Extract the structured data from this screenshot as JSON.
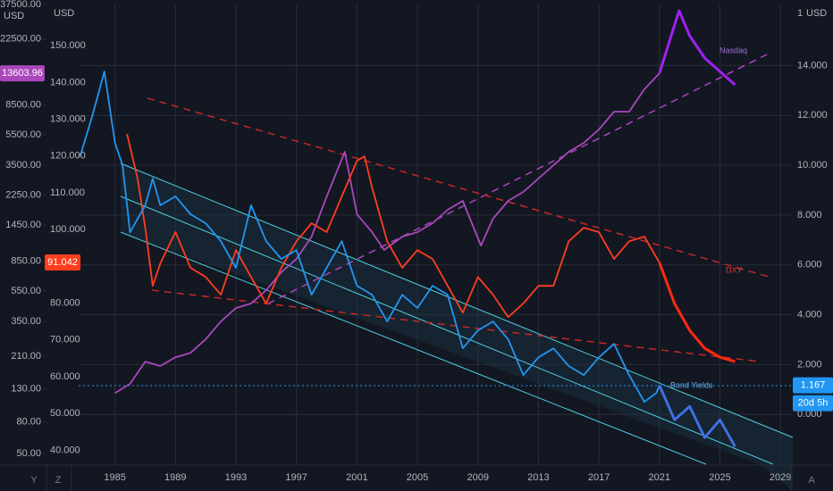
{
  "chart_data": {
    "type": "line",
    "x": null,
    "xlim": [
      1982.6,
      2029.7
    ],
    "xticks": [
      1985,
      1989,
      1993,
      1997,
      2001,
      2005,
      2009,
      2013,
      2017,
      2021,
      2025,
      2029
    ],
    "ylim": [
      36.2,
      161.2
    ],
    "yticks": [
      {
        "value": 150,
        "label": "150.000"
      },
      {
        "value": 140,
        "label": "140.000"
      },
      {
        "value": 130,
        "label": "130.000"
      },
      {
        "value": 120,
        "label": "120.000"
      },
      {
        "value": 110,
        "label": "110.000"
      },
      {
        "value": 100,
        "label": "100.000"
      },
      {
        "value": 80,
        "label": "80.000"
      },
      {
        "value": 70,
        "label": "70.000"
      },
      {
        "value": 60,
        "label": "60.000"
      },
      {
        "value": 50,
        "label": "50.000"
      },
      {
        "value": 40,
        "label": "40.000"
      }
    ],
    "y_unit": "USD",
    "y_marker": 91.042,
    "y2lim": [
      -2.0,
      16.45
    ],
    "y2ticks": [
      {
        "value": 0,
        "label": "0.000"
      },
      {
        "value": 2,
        "label": "2.000"
      },
      {
        "value": 4,
        "label": "4.000"
      },
      {
        "value": 6,
        "label": "6.000"
      },
      {
        "value": 8,
        "label": "8.000"
      },
      {
        "value": 10,
        "label": "10.000"
      },
      {
        "value": 12,
        "label": "12.000"
      },
      {
        "value": 14,
        "label": "14.000"
      }
    ],
    "y2_top_label": "1",
    "y2_unit": "USD",
    "y2_marker": 1.167,
    "y2_countdown": "20d 5h",
    "y3lim": [
      42.8,
      37500
    ],
    "y3_log": true,
    "y3ticks": [
      {
        "value": 37500,
        "label": "37500.00"
      },
      {
        "value": 22500,
        "label": "22500.00"
      },
      {
        "value": 8500,
        "label": "8500.00"
      },
      {
        "value": 5500,
        "label": "5500.00"
      },
      {
        "value": 3500,
        "label": "3500.00"
      },
      {
        "value": 2250,
        "label": "2250.00"
      },
      {
        "value": 1450,
        "label": "1450.00"
      },
      {
        "value": 850,
        "label": "850.00"
      },
      {
        "value": 550,
        "label": "550.00"
      },
      {
        "value": 350,
        "label": "350.00"
      },
      {
        "value": 210,
        "label": "210.00"
      },
      {
        "value": 130,
        "label": "130.00"
      },
      {
        "value": 80,
        "label": "80.00"
      },
      {
        "value": 50,
        "label": "50.00"
      }
    ],
    "y3_unit": "USD",
    "y3_marker": 13603.96,
    "grid": true,
    "projection_start": 2021,
    "series": [
      {
        "name": "Nasdaq",
        "axis": "y3",
        "color": "#ab47bc",
        "projection_color": "#a020f0",
        "x": [
          1985,
          1986,
          1987,
          1988,
          1989,
          1990,
          1991,
          1992,
          1993,
          1994,
          1995,
          1996,
          1997,
          1998,
          1999,
          2000.2,
          2001,
          2002,
          2002.8,
          2004,
          2005,
          2006,
          2007,
          2008,
          2009.2,
          2010,
          2011,
          2012,
          2013,
          2014,
          2015,
          2016,
          2017,
          2018,
          2019,
          2020,
          2021,
          2022.3,
          2023,
          2024,
          2025,
          2026
        ],
        "values": [
          122,
          140,
          194,
          182,
          207,
          221,
          270,
          351,
          428,
          457,
          556,
          724,
          881,
          1225,
          2213,
          4276,
          1702,
          1309,
          1006,
          1225,
          1309,
          1493,
          1820,
          2075,
          1074,
          1596,
          2075,
          2366,
          2884,
          3508,
          4276,
          4875,
          5943,
          7727,
          7727,
          10740,
          13604,
          34200,
          23660,
          17020,
          13970,
          11480
        ]
      },
      {
        "name": "DXY",
        "axis": "y",
        "color": "#ff3d1f",
        "projection_color": "#ff2a0f",
        "x": [
          1985.8,
          1986.5,
          1987,
          1987.5,
          1988,
          1989,
          1989.5,
          1990,
          1991,
          1992,
          1993,
          1994,
          1995,
          1996,
          1997,
          1998,
          1999,
          2000,
          2001,
          2001.5,
          2002,
          2003,
          2004,
          2005,
          2006,
          2007,
          2008,
          2009,
          2010,
          2011,
          2012,
          2013,
          2014,
          2015,
          2016,
          2017,
          2018,
          2019,
          2020,
          2021,
          2022,
          2023,
          2024,
          2025,
          2026
        ],
        "values": [
          126.0,
          113.8,
          100.5,
          84.7,
          90.8,
          99.3,
          94.4,
          89.6,
          87.1,
          82.3,
          94.4,
          87.1,
          79.9,
          89.6,
          96.8,
          101.7,
          99.3,
          109.0,
          118.7,
          119.9,
          111.4,
          96.8,
          89.6,
          94.4,
          92.0,
          84.7,
          77.4,
          87.1,
          82.3,
          76.2,
          79.9,
          84.7,
          84.7,
          96.8,
          100.5,
          99.3,
          92.0,
          96.8,
          98.1,
          91.0,
          79.9,
          72.6,
          67.7,
          65.3,
          64.1
        ]
      },
      {
        "name": "Bond Yields",
        "axis": "y2",
        "color": "#2196f3",
        "projection_color": "#3f6fe0",
        "x": [
          1982.7,
          1983.5,
          1984.3,
          1985,
          1985.5,
          1986,
          1987,
          1987.5,
          1988,
          1989,
          1990,
          1991,
          1992,
          1993,
          1994,
          1995,
          1996,
          1997,
          1998,
          1999,
          2000,
          2001,
          2002,
          2003,
          2004,
          2005,
          2006,
          2007,
          2008,
          2009,
          2010,
          2011,
          2012,
          2013,
          2014,
          2015,
          2016,
          2017,
          2018,
          2019,
          2020,
          2020.8,
          2021,
          2022,
          2023,
          2024,
          2025,
          2026
        ],
        "values": [
          10.36,
          11.97,
          13.76,
          10.9,
          10.0,
          7.31,
          8.39,
          9.46,
          8.39,
          8.75,
          8.03,
          7.67,
          6.95,
          5.88,
          8.39,
          6.95,
          6.24,
          6.59,
          4.8,
          5.88,
          6.95,
          5.16,
          4.8,
          3.73,
          4.8,
          4.27,
          5.16,
          4.8,
          2.65,
          3.37,
          3.73,
          3.01,
          1.58,
          2.29,
          2.65,
          1.94,
          1.58,
          2.29,
          2.83,
          1.58,
          0.5,
          0.86,
          1.167,
          -0.22,
          0.32,
          -0.93,
          -0.22,
          -1.29
        ]
      }
    ]
  },
  "ui": {
    "buttons": [
      "Y",
      "Z",
      "A"
    ]
  }
}
